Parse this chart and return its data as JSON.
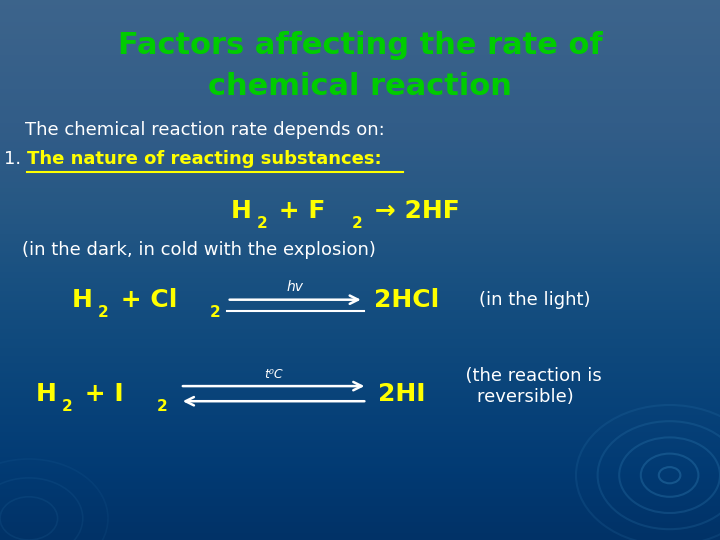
{
  "title_line1": "Factors affecting the rate of",
  "title_line2": "chemical reaction",
  "title_color": "#00cc00",
  "bg_color": "#003366",
  "white_color": "#ffffff",
  "yellow_color": "#ffff00",
  "text1": "The chemical reaction rate depends on:",
  "text2_num": "1.",
  "text2_body": "The nature of reacting substances:",
  "reaction1_note": "(in the dark, in cold with the explosion)",
  "reaction2_note": "(in the light)",
  "reaction2_label": "hv",
  "reaction3_label": "t⁰C",
  "arrow_color": "#ffffff",
  "deco_circle_color": "#4499cc"
}
